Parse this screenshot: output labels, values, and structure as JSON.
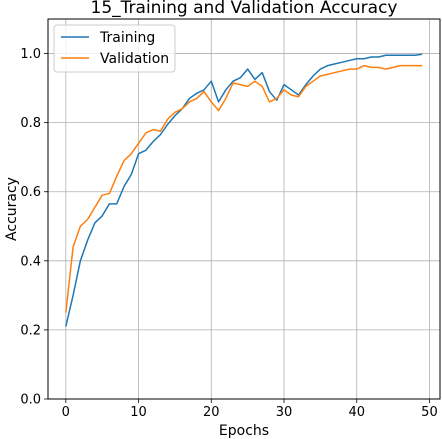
{
  "chart_data": {
    "type": "line",
    "title": "15_Training and Validation Accuracy",
    "xlabel": "Epochs",
    "ylabel": "Accuracy",
    "xlim": [
      -2.45,
      51.45
    ],
    "ylim": [
      0.0,
      1.1
    ],
    "xticks": [
      0,
      10,
      20,
      30,
      40,
      50
    ],
    "yticks": [
      0.0,
      0.2,
      0.4,
      0.6,
      0.8,
      1.0
    ],
    "grid": true,
    "legend_position": "top-left",
    "x": [
      0,
      1,
      2,
      3,
      4,
      5,
      6,
      7,
      8,
      9,
      10,
      11,
      12,
      13,
      14,
      15,
      16,
      17,
      18,
      19,
      20,
      21,
      22,
      23,
      24,
      25,
      26,
      27,
      28,
      29,
      30,
      31,
      32,
      33,
      34,
      35,
      36,
      37,
      38,
      39,
      40,
      41,
      42,
      43,
      44,
      45,
      46,
      47,
      48,
      49
    ],
    "series": [
      {
        "name": "Training",
        "color": "#1f77b4",
        "values": [
          0.21,
          0.3,
          0.4,
          0.46,
          0.51,
          0.53,
          0.565,
          0.565,
          0.615,
          0.65,
          0.71,
          0.72,
          0.745,
          0.765,
          0.795,
          0.82,
          0.84,
          0.87,
          0.885,
          0.895,
          0.92,
          0.86,
          0.895,
          0.92,
          0.93,
          0.955,
          0.925,
          0.945,
          0.89,
          0.865,
          0.91,
          0.895,
          0.88,
          0.91,
          0.935,
          0.955,
          0.965,
          0.97,
          0.975,
          0.98,
          0.985,
          0.985,
          0.99,
          0.99,
          0.995,
          0.995,
          0.995,
          0.995,
          0.995,
          0.998
        ]
      },
      {
        "name": "Validation",
        "color": "#ff7f0e",
        "values": [
          0.25,
          0.44,
          0.5,
          0.52,
          0.555,
          0.59,
          0.595,
          0.645,
          0.69,
          0.71,
          0.74,
          0.77,
          0.78,
          0.775,
          0.81,
          0.83,
          0.84,
          0.86,
          0.87,
          0.89,
          0.86,
          0.835,
          0.87,
          0.915,
          0.91,
          0.905,
          0.92,
          0.905,
          0.86,
          0.87,
          0.895,
          0.88,
          0.875,
          0.905,
          0.92,
          0.935,
          0.94,
          0.945,
          0.95,
          0.955,
          0.955,
          0.965,
          0.96,
          0.96,
          0.955,
          0.96,
          0.965,
          0.965,
          0.965,
          0.965
        ]
      }
    ]
  }
}
